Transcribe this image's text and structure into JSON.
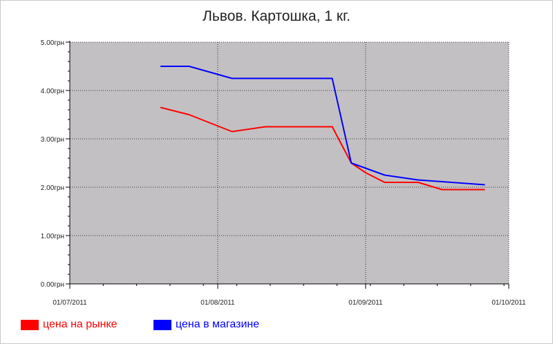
{
  "chart_data": {
    "type": "line",
    "title": "Львов. Картошка, 1 кг.",
    "xlabel": "",
    "ylabel": "",
    "x_ticks": [
      "01/07/2011",
      "01/08/2011",
      "01/09/2011",
      "01/10/2011"
    ],
    "y_ticks": [
      "0.00грн",
      "1.00грн",
      "2.00грн",
      "3.00грн",
      "4.00грн",
      "5.00грн"
    ],
    "xlim": [
      "2011-07-01",
      "2011-10-01"
    ],
    "ylim": [
      0,
      5
    ],
    "grid": true,
    "legend_position": "bottom-left",
    "series": [
      {
        "name": "цена на рынке",
        "color": "#ff0000",
        "points": [
          {
            "x": "2011-07-20",
            "y": 3.65
          },
          {
            "x": "2011-07-26",
            "y": 3.5
          },
          {
            "x": "2011-08-04",
            "y": 3.15
          },
          {
            "x": "2011-08-11",
            "y": 3.25
          },
          {
            "x": "2011-08-18",
            "y": 3.25
          },
          {
            "x": "2011-08-25",
            "y": 3.25
          },
          {
            "x": "2011-08-29",
            "y": 2.5
          },
          {
            "x": "2011-09-01",
            "y": 2.3
          },
          {
            "x": "2011-09-05",
            "y": 2.1
          },
          {
            "x": "2011-09-12",
            "y": 2.1
          },
          {
            "x": "2011-09-17",
            "y": 1.95
          },
          {
            "x": "2011-09-26",
            "y": 1.95
          }
        ]
      },
      {
        "name": "цена в магазине",
        "color": "#0000ff",
        "points": [
          {
            "x": "2011-07-20",
            "y": 4.5
          },
          {
            "x": "2011-07-26",
            "y": 4.5
          },
          {
            "x": "2011-08-04",
            "y": 4.25
          },
          {
            "x": "2011-08-11",
            "y": 4.25
          },
          {
            "x": "2011-08-18",
            "y": 4.25
          },
          {
            "x": "2011-08-25",
            "y": 4.25
          },
          {
            "x": "2011-08-29",
            "y": 2.5
          },
          {
            "x": "2011-09-05",
            "y": 2.25
          },
          {
            "x": "2011-09-12",
            "y": 2.15
          },
          {
            "x": "2011-09-19",
            "y": 2.1
          },
          {
            "x": "2011-09-26",
            "y": 2.05
          }
        ]
      }
    ],
    "colors": {
      "plot_background": "#c3c0c3",
      "grid": "#303030"
    }
  }
}
